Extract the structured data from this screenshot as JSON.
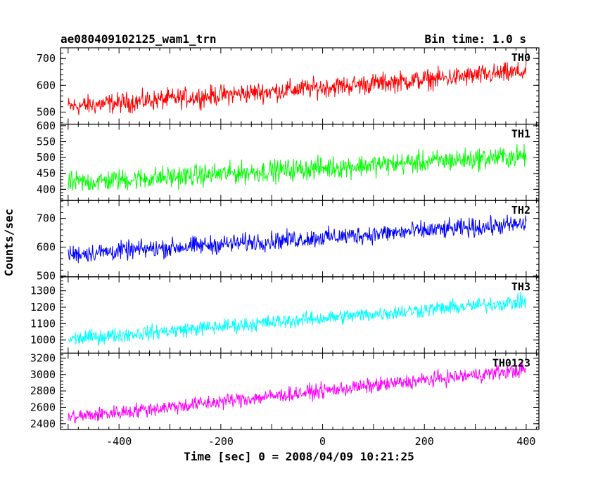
{
  "chart_data": {
    "type": "line",
    "title": "ae080409102125_wam1_trn",
    "subtitle": "Bin time: 1.0 s",
    "xlabel": "Time [sec] 0 = 2008/04/09 10:21:25",
    "ylabel": "Counts/sec",
    "xlim": [
      -515,
      425
    ],
    "xticks": [
      -400,
      -200,
      0,
      200,
      400
    ],
    "x_start": -500,
    "x_end": 400,
    "grid": false,
    "panels": [
      {
        "name": "TH0",
        "color": "#ff0000",
        "ylim": [
          455,
          740
        ],
        "yticks": [
          500,
          600,
          700
        ],
        "trend_start": 520,
        "trend_end": 650,
        "noise": 33
      },
      {
        "name": "TH1",
        "color": "#00ff00",
        "ylim": [
          365,
          605
        ],
        "yticks": [
          400,
          450,
          500,
          550,
          600
        ],
        "trend_start": 420,
        "trend_end": 505,
        "noise": 30
      },
      {
        "name": "TH2",
        "color": "#0000ff",
        "ylim": [
          497,
          762
        ],
        "yticks": [
          500,
          600,
          700
        ],
        "trend_start": 575,
        "trend_end": 680,
        "noise": 28
      },
      {
        "name": "TH3",
        "color": "#00ffff",
        "ylim": [
          920,
          1385
        ],
        "yticks": [
          1000,
          1100,
          1200,
          1300
        ],
        "trend_start": 1005,
        "trend_end": 1235,
        "noise": 40
      },
      {
        "name": "TH0123",
        "color": "#ff00ff",
        "ylim": [
          2330,
          3260
        ],
        "yticks": [
          2400,
          2600,
          2800,
          3000,
          3200
        ],
        "trend_start": 2475,
        "trend_end": 3060,
        "noise": 80
      }
    ]
  }
}
